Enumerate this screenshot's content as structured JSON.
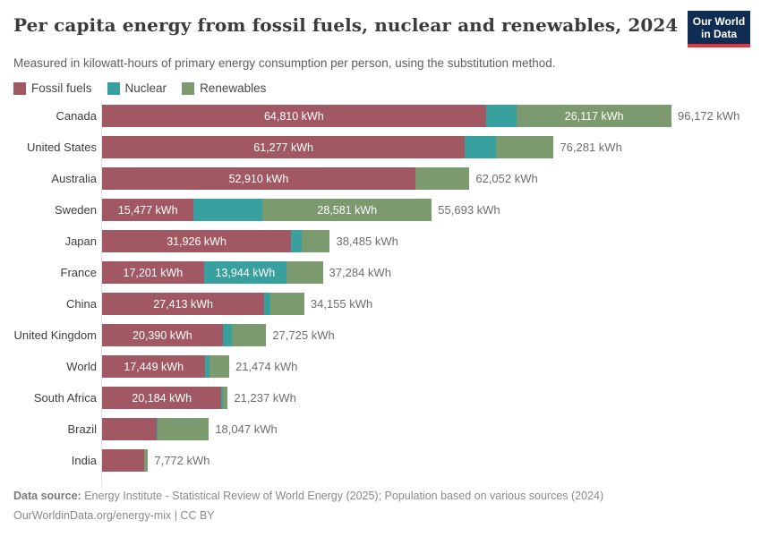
{
  "header": {
    "title": "Per capita energy from fossil fuels, nuclear and renewables, 2024",
    "subtitle": "Measured in kilowatt-hours of primary energy consumption per person, using the substitution method.",
    "logo": {
      "line1": "Our World",
      "line2": "in Data",
      "bg_color": "#0f2d52",
      "accent_color": "#e0363f"
    }
  },
  "legend": [
    {
      "label": "Fossil fuels",
      "color": "#a15862"
    },
    {
      "label": "Nuclear",
      "color": "#38a1a0"
    },
    {
      "label": "Renewables",
      "color": "#7b9a6e"
    }
  ],
  "chart_data": {
    "type": "bar",
    "orientation": "horizontal",
    "stacked": true,
    "unit": "kWh",
    "xlim": [
      0,
      96172
    ],
    "grid": false,
    "legend_position": "top",
    "series_keys": [
      "fossil",
      "nuclear",
      "renewables"
    ],
    "colors": {
      "fossil": "#a15862",
      "nuclear": "#38a1a0",
      "renewables": "#7b9a6e"
    },
    "rows": [
      {
        "name": "Canada",
        "fossil": 64810,
        "nuclear": 5245,
        "renewables": 26117,
        "total": 96172,
        "labels": {
          "fossil": "64,810 kWh",
          "renewables": "26,117 kWh"
        },
        "total_label": "96,172 kWh"
      },
      {
        "name": "United States",
        "fossil": 61277,
        "nuclear": 5330,
        "renewables": 9674,
        "total": 76281,
        "labels": {
          "fossil": "61,277 kWh"
        },
        "total_label": "76,281 kWh"
      },
      {
        "name": "Australia",
        "fossil": 52910,
        "nuclear": 0,
        "renewables": 9142,
        "total": 62052,
        "labels": {
          "fossil": "52,910 kWh"
        },
        "total_label": "62,052 kWh"
      },
      {
        "name": "Sweden",
        "fossil": 15477,
        "nuclear": 11635,
        "renewables": 28581,
        "total": 55693,
        "labels": {
          "fossil": "15,477 kWh",
          "renewables": "28,581 kWh"
        },
        "total_label": "55,693 kWh"
      },
      {
        "name": "Japan",
        "fossil": 31926,
        "nuclear": 1750,
        "renewables": 4809,
        "total": 38485,
        "labels": {
          "fossil": "31,926 kWh"
        },
        "total_label": "38,485 kWh"
      },
      {
        "name": "France",
        "fossil": 17201,
        "nuclear": 13944,
        "renewables": 6139,
        "total": 37284,
        "labels": {
          "fossil": "17,201 kWh",
          "nuclear": "13,944 kWh"
        },
        "total_label": "37,284 kWh"
      },
      {
        "name": "China",
        "fossil": 27413,
        "nuclear": 940,
        "renewables": 5802,
        "total": 34155,
        "labels": {
          "fossil": "27,413 kWh"
        },
        "total_label": "34,155 kWh"
      },
      {
        "name": "United Kingdom",
        "fossil": 20390,
        "nuclear": 1560,
        "renewables": 5775,
        "total": 27725,
        "labels": {
          "fossil": "20,390 kWh"
        },
        "total_label": "27,725 kWh"
      },
      {
        "name": "World",
        "fossil": 17449,
        "nuclear": 760,
        "renewables": 3265,
        "total": 21474,
        "labels": {
          "fossil": "17,449 kWh"
        },
        "total_label": "21,474 kWh"
      },
      {
        "name": "South Africa",
        "fossil": 20184,
        "nuclear": 260,
        "renewables": 793,
        "total": 21237,
        "labels": {
          "fossil": "20,184 kWh"
        },
        "total_label": "21,237 kWh"
      },
      {
        "name": "Brazil",
        "fossil": 9220,
        "nuclear": 170,
        "renewables": 8657,
        "total": 18047,
        "labels": {},
        "total_label": "18,047 kWh"
      },
      {
        "name": "India",
        "fossil": 7100,
        "nuclear": 40,
        "renewables": 632,
        "total": 7772,
        "labels": {},
        "total_label": "7,772 kWh"
      }
    ]
  },
  "footer": {
    "source_prefix": "Data source:",
    "source_text": " Energy Institute - Statistical Review of World Energy (2025); Population based on various sources (2024)",
    "license_line": "OurWorldinData.org/energy-mix | CC BY"
  }
}
